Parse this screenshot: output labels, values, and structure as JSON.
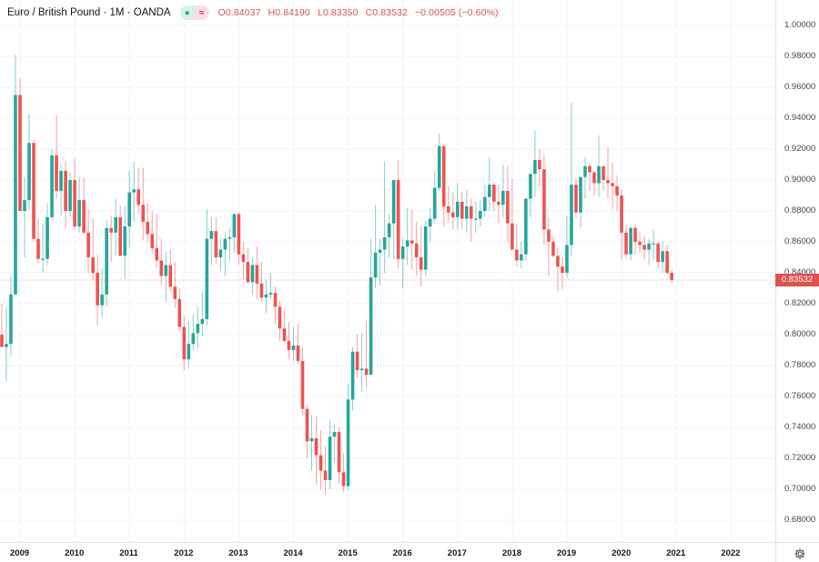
{
  "header": {
    "symbol_title": "Euro / British Pound · 1M · OANDA",
    "status_dot_icon": "●",
    "approx_icon": "≈",
    "ohlc": {
      "open": "O0.84037",
      "high": "H0.84190",
      "low": "L0.83350",
      "close": "C0.83532",
      "change": "−0.00505 (−0.60%)"
    }
  },
  "price_axis": {
    "ticks": [
      "1.00000",
      "0.98000",
      "0.96000",
      "0.94000",
      "0.92000",
      "0.90000",
      "0.88000",
      "0.86000",
      "0.84000",
      "0.82000",
      "0.80000",
      "0.78000",
      "0.76000",
      "0.74000",
      "0.72000",
      "0.70000",
      "0.68000"
    ],
    "last_price_label": "0.83532"
  },
  "time_axis": {
    "ticks": [
      "2009",
      "2010",
      "2011",
      "2012",
      "2013",
      "2014",
      "2015",
      "2016",
      "2017",
      "2018",
      "2019",
      "2020",
      "2021",
      "2022"
    ]
  },
  "colors": {
    "up": "#26a69a",
    "down": "#ef5350",
    "grid": "#f0f3fa",
    "last_price": "#e0524c",
    "text": "#131722"
  },
  "chart_data": {
    "type": "candlestick",
    "title": "Euro / British Pound · 1M · OANDA",
    "xlabel": "",
    "ylabel": "",
    "ylim": [
      0.665,
      1.01
    ],
    "grid": true,
    "interval": "1M",
    "last_close": 0.83532,
    "start": "2008-09",
    "candles": [
      [
        0.8,
        0.82,
        0.795,
        0.792
      ],
      [
        0.792,
        0.818,
        0.77,
        0.794
      ],
      [
        0.794,
        0.838,
        0.786,
        0.826
      ],
      [
        0.826,
        0.981,
        0.826,
        0.955
      ],
      [
        0.955,
        0.966,
        0.88,
        0.88
      ],
      [
        0.88,
        0.902,
        0.85,
        0.887
      ],
      [
        0.887,
        0.943,
        0.881,
        0.924
      ],
      [
        0.924,
        0.926,
        0.86,
        0.862
      ],
      [
        0.862,
        0.875,
        0.846,
        0.849
      ],
      [
        0.849,
        0.872,
        0.84,
        0.849
      ],
      [
        0.849,
        0.885,
        0.845,
        0.876
      ],
      [
        0.876,
        0.92,
        0.874,
        0.916
      ],
      [
        0.916,
        0.942,
        0.888,
        0.893
      ],
      [
        0.893,
        0.91,
        0.877,
        0.906
      ],
      [
        0.906,
        0.912,
        0.869,
        0.88
      ],
      [
        0.88,
        0.905,
        0.876,
        0.9
      ],
      [
        0.9,
        0.914,
        0.868,
        0.87
      ],
      [
        0.87,
        0.902,
        0.866,
        0.887
      ],
      [
        0.887,
        0.902,
        0.865,
        0.866
      ],
      [
        0.866,
        0.881,
        0.84,
        0.85
      ],
      [
        0.85,
        0.875,
        0.835,
        0.84
      ],
      [
        0.84,
        0.852,
        0.806,
        0.819
      ],
      [
        0.819,
        0.843,
        0.811,
        0.826
      ],
      [
        0.826,
        0.874,
        0.818,
        0.869
      ],
      [
        0.869,
        0.877,
        0.847,
        0.866
      ],
      [
        0.866,
        0.888,
        0.851,
        0.876
      ],
      [
        0.876,
        0.884,
        0.851,
        0.851
      ],
      [
        0.851,
        0.883,
        0.836,
        0.87
      ],
      [
        0.87,
        0.906,
        0.856,
        0.892
      ],
      [
        0.892,
        0.912,
        0.873,
        0.894
      ],
      [
        0.894,
        0.908,
        0.878,
        0.884
      ],
      [
        0.884,
        0.908,
        0.861,
        0.873
      ],
      [
        0.873,
        0.885,
        0.86,
        0.865
      ],
      [
        0.865,
        0.88,
        0.852,
        0.856
      ],
      [
        0.856,
        0.878,
        0.843,
        0.848
      ],
      [
        0.848,
        0.862,
        0.832,
        0.838
      ],
      [
        0.838,
        0.854,
        0.821,
        0.845
      ],
      [
        0.845,
        0.855,
        0.828,
        0.831
      ],
      [
        0.831,
        0.847,
        0.817,
        0.823
      ],
      [
        0.823,
        0.83,
        0.802,
        0.805
      ],
      [
        0.805,
        0.812,
        0.777,
        0.784
      ],
      [
        0.784,
        0.809,
        0.778,
        0.794
      ],
      [
        0.794,
        0.813,
        0.79,
        0.801
      ],
      [
        0.801,
        0.818,
        0.791,
        0.807
      ],
      [
        0.807,
        0.828,
        0.799,
        0.81
      ],
      [
        0.81,
        0.881,
        0.806,
        0.862
      ],
      [
        0.862,
        0.876,
        0.845,
        0.867
      ],
      [
        0.867,
        0.876,
        0.846,
        0.85
      ],
      [
        0.85,
        0.862,
        0.841,
        0.855
      ],
      [
        0.855,
        0.866,
        0.838,
        0.862
      ],
      [
        0.862,
        0.869,
        0.848,
        0.863
      ],
      [
        0.863,
        0.878,
        0.853,
        0.878
      ],
      [
        0.878,
        0.879,
        0.845,
        0.852
      ],
      [
        0.852,
        0.86,
        0.836,
        0.847
      ],
      [
        0.847,
        0.856,
        0.833,
        0.834
      ],
      [
        0.834,
        0.85,
        0.826,
        0.845
      ],
      [
        0.845,
        0.857,
        0.823,
        0.833
      ],
      [
        0.833,
        0.847,
        0.821,
        0.824
      ],
      [
        0.824,
        0.835,
        0.814,
        0.826
      ],
      [
        0.826,
        0.84,
        0.823,
        0.827
      ],
      [
        0.827,
        0.831,
        0.807,
        0.818
      ],
      [
        0.818,
        0.822,
        0.796,
        0.804
      ],
      [
        0.804,
        0.816,
        0.795,
        0.796
      ],
      [
        0.796,
        0.808,
        0.784,
        0.79
      ],
      [
        0.79,
        0.805,
        0.783,
        0.793
      ],
      [
        0.793,
        0.807,
        0.781,
        0.783
      ],
      [
        0.783,
        0.792,
        0.748,
        0.752
      ],
      [
        0.752,
        0.755,
        0.72,
        0.731
      ],
      [
        0.731,
        0.748,
        0.712,
        0.733
      ],
      [
        0.733,
        0.747,
        0.703,
        0.722
      ],
      [
        0.722,
        0.738,
        0.7,
        0.712
      ],
      [
        0.712,
        0.728,
        0.697,
        0.706
      ],
      [
        0.706,
        0.745,
        0.7,
        0.734
      ],
      [
        0.734,
        0.742,
        0.717,
        0.737
      ],
      [
        0.737,
        0.74,
        0.704,
        0.711
      ],
      [
        0.711,
        0.723,
        0.698,
        0.702
      ],
      [
        0.702,
        0.768,
        0.699,
        0.758
      ],
      [
        0.758,
        0.792,
        0.751,
        0.789
      ],
      [
        0.789,
        0.8,
        0.772,
        0.777
      ],
      [
        0.777,
        0.801,
        0.763,
        0.778
      ],
      [
        0.778,
        0.809,
        0.765,
        0.774
      ],
      [
        0.774,
        0.862,
        0.774,
        0.837
      ],
      [
        0.837,
        0.884,
        0.83,
        0.853
      ],
      [
        0.853,
        0.862,
        0.832,
        0.855
      ],
      [
        0.855,
        0.912,
        0.84,
        0.863
      ],
      [
        0.863,
        0.878,
        0.85,
        0.872
      ],
      [
        0.872,
        0.884,
        0.849,
        0.9
      ],
      [
        0.9,
        0.913,
        0.843,
        0.849
      ],
      [
        0.849,
        0.862,
        0.83,
        0.857
      ],
      [
        0.857,
        0.882,
        0.845,
        0.861
      ],
      [
        0.861,
        0.881,
        0.842,
        0.859
      ],
      [
        0.859,
        0.873,
        0.838,
        0.85
      ],
      [
        0.85,
        0.87,
        0.831,
        0.842
      ],
      [
        0.842,
        0.874,
        0.838,
        0.87
      ],
      [
        0.87,
        0.882,
        0.86,
        0.875
      ],
      [
        0.875,
        0.905,
        0.872,
        0.895
      ],
      [
        0.895,
        0.93,
        0.893,
        0.922
      ],
      [
        0.922,
        0.92,
        0.87,
        0.883
      ],
      [
        0.883,
        0.896,
        0.873,
        0.879
      ],
      [
        0.879,
        0.892,
        0.868,
        0.876
      ],
      [
        0.876,
        0.898,
        0.868,
        0.886
      ],
      [
        0.886,
        0.892,
        0.868,
        0.875
      ],
      [
        0.875,
        0.894,
        0.866,
        0.883
      ],
      [
        0.883,
        0.888,
        0.86,
        0.875
      ],
      [
        0.875,
        0.886,
        0.866,
        0.875
      ],
      [
        0.875,
        0.887,
        0.87,
        0.88
      ],
      [
        0.88,
        0.897,
        0.876,
        0.889
      ],
      [
        0.889,
        0.915,
        0.88,
        0.897
      ],
      [
        0.897,
        0.898,
        0.88,
        0.886
      ],
      [
        0.886,
        0.897,
        0.872,
        0.884
      ],
      [
        0.884,
        0.91,
        0.876,
        0.893
      ],
      [
        0.893,
        0.909,
        0.86,
        0.872
      ],
      [
        0.872,
        0.901,
        0.856,
        0.855
      ],
      [
        0.855,
        0.872,
        0.844,
        0.848
      ],
      [
        0.848,
        0.86,
        0.843,
        0.852
      ],
      [
        0.852,
        0.888,
        0.848,
        0.888
      ],
      [
        0.888,
        0.897,
        0.876,
        0.904
      ],
      [
        0.904,
        0.932,
        0.889,
        0.913
      ],
      [
        0.913,
        0.92,
        0.896,
        0.907
      ],
      [
        0.907,
        0.916,
        0.858,
        0.868
      ],
      [
        0.868,
        0.876,
        0.838,
        0.86
      ],
      [
        0.86,
        0.864,
        0.85,
        0.851
      ],
      [
        0.851,
        0.856,
        0.828,
        0.844
      ],
      [
        0.844,
        0.85,
        0.829,
        0.84
      ],
      [
        0.84,
        0.877,
        0.837,
        0.858
      ],
      [
        0.858,
        0.95,
        0.851,
        0.897
      ],
      [
        0.897,
        0.901,
        0.875,
        0.879
      ],
      [
        0.879,
        0.899,
        0.869,
        0.902
      ],
      [
        0.902,
        0.915,
        0.888,
        0.909
      ],
      [
        0.909,
        0.911,
        0.893,
        0.905
      ],
      [
        0.905,
        0.906,
        0.89,
        0.898
      ],
      [
        0.898,
        0.929,
        0.889,
        0.909
      ],
      [
        0.909,
        0.908,
        0.893,
        0.9
      ],
      [
        0.9,
        0.921,
        0.888,
        0.898
      ],
      [
        0.898,
        0.911,
        0.881,
        0.896
      ],
      [
        0.896,
        0.903,
        0.88,
        0.89
      ],
      [
        0.89,
        0.894,
        0.848,
        0.866
      ],
      [
        0.866,
        0.871,
        0.849,
        0.852
      ],
      [
        0.852,
        0.87,
        0.848,
        0.869
      ],
      [
        0.869,
        0.871,
        0.852,
        0.86
      ],
      [
        0.86,
        0.866,
        0.853,
        0.858
      ],
      [
        0.858,
        0.864,
        0.848,
        0.855
      ],
      [
        0.855,
        0.862,
        0.845,
        0.859
      ],
      [
        0.859,
        0.868,
        0.848,
        0.859
      ],
      [
        0.859,
        0.86,
        0.843,
        0.847
      ],
      [
        0.847,
        0.86,
        0.84,
        0.854
      ],
      [
        0.854,
        0.858,
        0.839,
        0.84
      ],
      [
        0.84,
        0.8419,
        0.8335,
        0.83532
      ]
    ]
  }
}
